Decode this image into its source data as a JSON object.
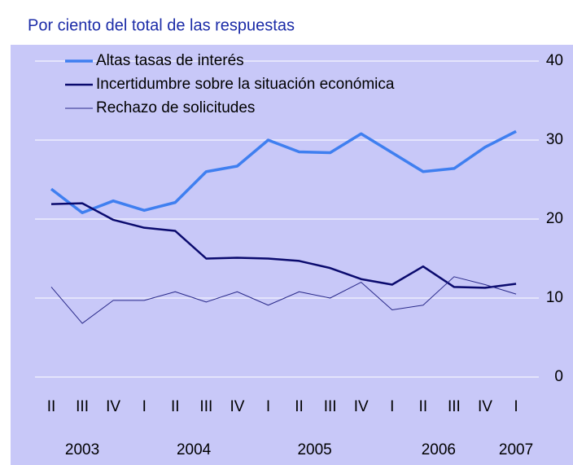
{
  "chart_data": {
    "type": "line",
    "title": "Por ciento del total de las respuestas",
    "categories": [
      "II",
      "III",
      "IV",
      "I",
      "II",
      "III",
      "IV",
      "I",
      "II",
      "III",
      "IV",
      "I",
      "II",
      "III",
      "IV",
      "I"
    ],
    "years": [
      "2003",
      "2004",
      "2005",
      "2006",
      "2007"
    ],
    "series": [
      {
        "name": "Altas tasas de interés",
        "color": "#3f7ff0",
        "width": 3.5,
        "values": [
          23.8,
          20.8,
          22.3,
          21.1,
          22.1,
          26.0,
          26.7,
          30.0,
          28.5,
          28.4,
          30.8,
          28.4,
          26.0,
          26.4,
          29.1,
          31.1
        ]
      },
      {
        "name": "Incertidumbre sobre la situación económica",
        "color": "#0a0a6e",
        "width": 2.5,
        "values": [
          21.9,
          22.0,
          19.9,
          18.9,
          18.5,
          15.0,
          15.1,
          15.0,
          14.7,
          13.8,
          12.4,
          11.7,
          14.0,
          11.4,
          11.3,
          11.8
        ]
      },
      {
        "name": "Rechazo de solicitudes",
        "color": "#2a2a8a",
        "width": 1,
        "values": [
          11.4,
          6.8,
          9.7,
          9.7,
          10.8,
          9.5,
          10.8,
          9.1,
          10.8,
          10.0,
          12.0,
          8.5,
          9.1,
          12.7,
          11.7,
          10.5
        ]
      }
    ],
    "ylim": [
      0,
      40
    ],
    "yticks": [
      0,
      10,
      20,
      30,
      40
    ],
    "grid": true
  }
}
